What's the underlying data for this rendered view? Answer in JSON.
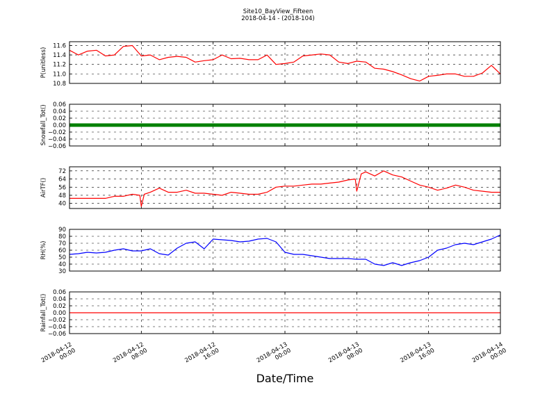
{
  "header": {
    "title": "Site10_BayView_Fifteen",
    "subtitle": "2018-04-14 - (2018-104)"
  },
  "xaxis": {
    "label": "Date/Time",
    "range": [
      "2018-04-12 00:00",
      "2018-04-14 00:00"
    ],
    "ticks": [
      {
        "value": "2018-04-12 00:00",
        "line1": "2018-04-12",
        "line2": "00:00"
      },
      {
        "value": "2018-04-12 08:00",
        "line1": "2018-04-12",
        "line2": "08:00"
      },
      {
        "value": "2018-04-12 16:00",
        "line1": "2018-04-12",
        "line2": "16:00"
      },
      {
        "value": "2018-04-13 00:00",
        "line1": "2018-04-13",
        "line2": "00:00"
      },
      {
        "value": "2018-04-13 08:00",
        "line1": "2018-04-13",
        "line2": "08:00"
      },
      {
        "value": "2018-04-13 16:00",
        "line1": "2018-04-13",
        "line2": "16:00"
      },
      {
        "value": "2018-04-14 00:00",
        "line1": "2018-04-14",
        "line2": "00:00"
      }
    ]
  },
  "chart_data": [
    {
      "type": "line",
      "ylabel": "P(unitless)",
      "ylim": [
        10.8,
        11.68
      ],
      "yticks": [
        10.8,
        11.0,
        11.2,
        11.4,
        11.6
      ],
      "ytick_labels": [
        "10.8",
        "11.0",
        "11.2",
        "11.4",
        "11.6"
      ],
      "grid": true,
      "color": "#ff0000",
      "marker": "none",
      "x": [
        "2018-04-12 00:00",
        "2018-04-12 01:00",
        "2018-04-12 02:00",
        "2018-04-12 03:00",
        "2018-04-12 04:00",
        "2018-04-12 05:00",
        "2018-04-12 06:00",
        "2018-04-12 07:00",
        "2018-04-12 08:00",
        "2018-04-12 09:00",
        "2018-04-12 10:00",
        "2018-04-12 11:00",
        "2018-04-12 12:00",
        "2018-04-12 13:00",
        "2018-04-12 14:00",
        "2018-04-12 15:00",
        "2018-04-12 16:00",
        "2018-04-12 17:00",
        "2018-04-12 18:00",
        "2018-04-12 19:00",
        "2018-04-12 20:00",
        "2018-04-12 21:00",
        "2018-04-12 22:00",
        "2018-04-12 23:00",
        "2018-04-13 00:00",
        "2018-04-13 01:00",
        "2018-04-13 02:00",
        "2018-04-13 03:00",
        "2018-04-13 04:00",
        "2018-04-13 05:00",
        "2018-04-13 06:00",
        "2018-04-13 07:00",
        "2018-04-13 08:00",
        "2018-04-13 09:00",
        "2018-04-13 10:00",
        "2018-04-13 11:00",
        "2018-04-13 12:00",
        "2018-04-13 13:00",
        "2018-04-13 14:00",
        "2018-04-13 15:00",
        "2018-04-13 16:00",
        "2018-04-13 17:00",
        "2018-04-13 18:00",
        "2018-04-13 19:00",
        "2018-04-13 20:00",
        "2018-04-13 21:00",
        "2018-04-13 22:00",
        "2018-04-13 23:00",
        "2018-04-14 00:00"
      ],
      "y": [
        11.5,
        11.4,
        11.48,
        11.5,
        11.38,
        11.4,
        11.58,
        11.6,
        11.38,
        11.4,
        11.3,
        11.35,
        11.37,
        11.35,
        11.25,
        11.28,
        11.3,
        11.4,
        11.32,
        11.33,
        11.3,
        11.3,
        11.4,
        11.2,
        11.22,
        11.25,
        11.38,
        11.4,
        11.42,
        11.4,
        11.25,
        11.22,
        11.27,
        11.25,
        11.12,
        11.1,
        11.05,
        10.98,
        10.9,
        10.85,
        10.95,
        10.97,
        11.0,
        11.0,
        10.95,
        10.95,
        11.02,
        11.18,
        11.0
      ]
    },
    {
      "type": "scatter",
      "ylabel": "Snowfall_Tot()",
      "ylim": [
        -0.06,
        0.06
      ],
      "yticks": [
        -0.06,
        -0.04,
        -0.02,
        0.0,
        0.02,
        0.04,
        0.06
      ],
      "ytick_labels": [
        "−0.06",
        "−0.04",
        "−0.02",
        "0.00",
        "0.02",
        "0.04",
        "0.06"
      ],
      "grid": true,
      "color": "#008000",
      "marker": "dot",
      "x": [
        "2018-04-12 00:00",
        "2018-04-14 00:00"
      ],
      "y": [
        0.0,
        0.0
      ]
    },
    {
      "type": "line",
      "ylabel": "AirTF()",
      "ylim": [
        35,
        76
      ],
      "yticks": [
        40,
        48,
        56,
        64,
        72
      ],
      "ytick_labels": [
        "40",
        "48",
        "56",
        "64",
        "72"
      ],
      "grid": true,
      "color": "#ff0000",
      "marker": "none",
      "x": [
        "2018-04-12 00:00",
        "2018-04-12 01:00",
        "2018-04-12 02:00",
        "2018-04-12 03:00",
        "2018-04-12 04:00",
        "2018-04-12 05:00",
        "2018-04-12 06:00",
        "2018-04-12 07:00",
        "2018-04-12 07:50",
        "2018-04-12 08:00",
        "2018-04-12 08:20",
        "2018-04-12 09:00",
        "2018-04-12 10:00",
        "2018-04-12 11:00",
        "2018-04-12 12:00",
        "2018-04-12 13:00",
        "2018-04-12 14:00",
        "2018-04-12 15:00",
        "2018-04-12 16:00",
        "2018-04-12 17:00",
        "2018-04-12 18:00",
        "2018-04-12 19:00",
        "2018-04-12 20:00",
        "2018-04-12 21:00",
        "2018-04-12 22:00",
        "2018-04-12 23:00",
        "2018-04-13 00:00",
        "2018-04-13 01:00",
        "2018-04-13 02:00",
        "2018-04-13 03:00",
        "2018-04-13 04:00",
        "2018-04-13 05:00",
        "2018-04-13 06:00",
        "2018-04-13 07:00",
        "2018-04-13 07:50",
        "2018-04-13 08:00",
        "2018-04-13 08:30",
        "2018-04-13 09:00",
        "2018-04-13 10:00",
        "2018-04-13 11:00",
        "2018-04-13 12:00",
        "2018-04-13 13:00",
        "2018-04-13 14:00",
        "2018-04-13 15:00",
        "2018-04-13 16:00",
        "2018-04-13 17:00",
        "2018-04-13 18:00",
        "2018-04-13 19:00",
        "2018-04-13 20:00",
        "2018-04-13 21:00",
        "2018-04-13 22:00",
        "2018-04-13 23:00",
        "2018-04-14 00:00"
      ],
      "y": [
        45,
        45,
        45,
        45,
        45,
        47,
        47,
        49,
        48,
        37,
        49,
        51,
        55,
        51,
        51,
        53,
        50,
        50,
        49,
        48,
        51,
        50,
        49,
        49,
        51,
        56,
        57,
        57,
        58,
        59,
        59,
        60,
        61,
        63,
        64,
        52,
        69,
        71,
        67,
        72,
        68,
        66,
        62,
        58,
        56,
        53,
        55,
        58,
        56,
        53,
        52,
        51,
        51
      ]
    },
    {
      "type": "line",
      "ylabel": "RH(%)",
      "ylim": [
        30,
        90
      ],
      "yticks": [
        30,
        40,
        50,
        60,
        70,
        80,
        90
      ],
      "ytick_labels": [
        "30",
        "40",
        "50",
        "60",
        "70",
        "80",
        "90"
      ],
      "grid": true,
      "color": "#0000ff",
      "marker": "none",
      "x": [
        "2018-04-12 00:00",
        "2018-04-12 01:00",
        "2018-04-12 02:00",
        "2018-04-12 03:00",
        "2018-04-12 04:00",
        "2018-04-12 05:00",
        "2018-04-12 06:00",
        "2018-04-12 07:00",
        "2018-04-12 08:00",
        "2018-04-12 09:00",
        "2018-04-12 10:00",
        "2018-04-12 11:00",
        "2018-04-12 12:00",
        "2018-04-12 13:00",
        "2018-04-12 14:00",
        "2018-04-12 15:00",
        "2018-04-12 16:00",
        "2018-04-12 17:00",
        "2018-04-12 18:00",
        "2018-04-12 19:00",
        "2018-04-12 20:00",
        "2018-04-12 21:00",
        "2018-04-12 22:00",
        "2018-04-12 23:00",
        "2018-04-13 00:00",
        "2018-04-13 01:00",
        "2018-04-13 02:00",
        "2018-04-13 03:00",
        "2018-04-13 04:00",
        "2018-04-13 05:00",
        "2018-04-13 06:00",
        "2018-04-13 07:00",
        "2018-04-13 08:00",
        "2018-04-13 09:00",
        "2018-04-13 10:00",
        "2018-04-13 11:00",
        "2018-04-13 12:00",
        "2018-04-13 13:00",
        "2018-04-13 14:00",
        "2018-04-13 15:00",
        "2018-04-13 16:00",
        "2018-04-13 17:00",
        "2018-04-13 18:00",
        "2018-04-13 19:00",
        "2018-04-13 20:00",
        "2018-04-13 21:00",
        "2018-04-13 22:00",
        "2018-04-13 23:00",
        "2018-04-14 00:00"
      ],
      "y": [
        54,
        55,
        57,
        56,
        57,
        60,
        62,
        59,
        59,
        62,
        55,
        53,
        63,
        70,
        72,
        62,
        76,
        75,
        74,
        72,
        73,
        76,
        77,
        72,
        57,
        54,
        54,
        52,
        50,
        48,
        48,
        48,
        47,
        47,
        40,
        38,
        42,
        38,
        42,
        45,
        50,
        60,
        63,
        68,
        70,
        68,
        72,
        76,
        82
      ]
    },
    {
      "type": "line",
      "ylabel": "Rainfall_Tot()",
      "ylim": [
        -0.06,
        0.06
      ],
      "yticks": [
        -0.06,
        -0.04,
        -0.02,
        0.0,
        0.02,
        0.04,
        0.06
      ],
      "ytick_labels": [
        "−0.06",
        "−0.04",
        "−0.02",
        "0.00",
        "0.02",
        "0.04",
        "0.06"
      ],
      "grid": true,
      "color": "#ff0000",
      "marker": "none",
      "x": [
        "2018-04-12 00:00",
        "2018-04-14 00:00"
      ],
      "y": [
        0.0,
        0.0
      ]
    }
  ]
}
